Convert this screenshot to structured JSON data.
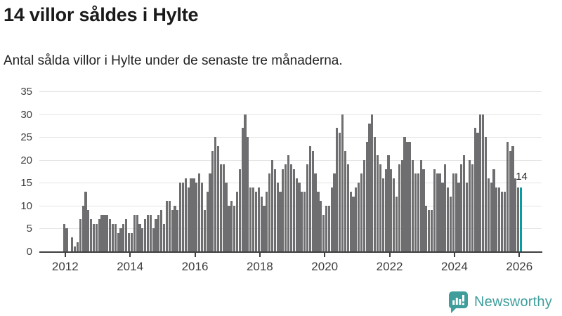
{
  "header": {
    "title": "14 villor såldes i Hylte",
    "subtitle": "Antal sålda villor i Hylte under de senaste tre månaderna."
  },
  "footer": {
    "logo_text": "Newsworthy",
    "logo_icon": "bar-chart-speech-bubble-icon"
  },
  "chart_data": {
    "type": "bar",
    "title": "14 villor såldes i Hylte",
    "subtitle": "Antal sålda villor i Hylte under de senaste tre månaderna.",
    "frequency": "monthly",
    "start_month": "2012-01",
    "end_month": "2026-02",
    "values": [
      6,
      5,
      0,
      3,
      1,
      2,
      7,
      10,
      13,
      9,
      7,
      6,
      6,
      7,
      8,
      8,
      8,
      7,
      6,
      6,
      4,
      5,
      6,
      7,
      4,
      4,
      8,
      8,
      6,
      5,
      7,
      8,
      8,
      5,
      7,
      8,
      9,
      6,
      11,
      11,
      9,
      10,
      9,
      15,
      15,
      16,
      14,
      16,
      16,
      15,
      17,
      15,
      9,
      13,
      17,
      22,
      25,
      23,
      19,
      19,
      15,
      10,
      11,
      10,
      13,
      18,
      27,
      30,
      25,
      14,
      14,
      13,
      14,
      12,
      10,
      13,
      17,
      20,
      18,
      15,
      13,
      18,
      19,
      21,
      19,
      18,
      16,
      15,
      13,
      13,
      19,
      23,
      22,
      17,
      13,
      11,
      8,
      10,
      10,
      14,
      17,
      27,
      26,
      30,
      22,
      19,
      13,
      12,
      14,
      15,
      17,
      20,
      24,
      28,
      30,
      25,
      21,
      19,
      16,
      18,
      21,
      18,
      16,
      12,
      19,
      20,
      25,
      24,
      24,
      20,
      17,
      17,
      20,
      18,
      10,
      9,
      9,
      18,
      17,
      17,
      15,
      19,
      14,
      12,
      17,
      17,
      15,
      19,
      21,
      15,
      20,
      19,
      27,
      26,
      30,
      30,
      25,
      16,
      15,
      18,
      14,
      14,
      13,
      13,
      24,
      22,
      23,
      16,
      14,
      14
    ],
    "highlight": {
      "index": 169,
      "value": 14,
      "label": "14"
    },
    "x_tick_labels": [
      "2012",
      "2014",
      "2016",
      "2018",
      "2020",
      "2022",
      "2024",
      "2026"
    ],
    "y_ticks": [
      0,
      5,
      10,
      15,
      20,
      25,
      30,
      35
    ],
    "ylim": [
      0,
      35
    ],
    "grid": true,
    "legend": "none",
    "colors": {
      "bar": "#6e6e70",
      "highlight": "#069e9e",
      "grid": "#e4e4e4",
      "axis": "#3f3f3f",
      "tick_text": "#3d3d3d",
      "title_text": "#1a1a1a",
      "logo_teal": "#3f9e9c"
    }
  }
}
